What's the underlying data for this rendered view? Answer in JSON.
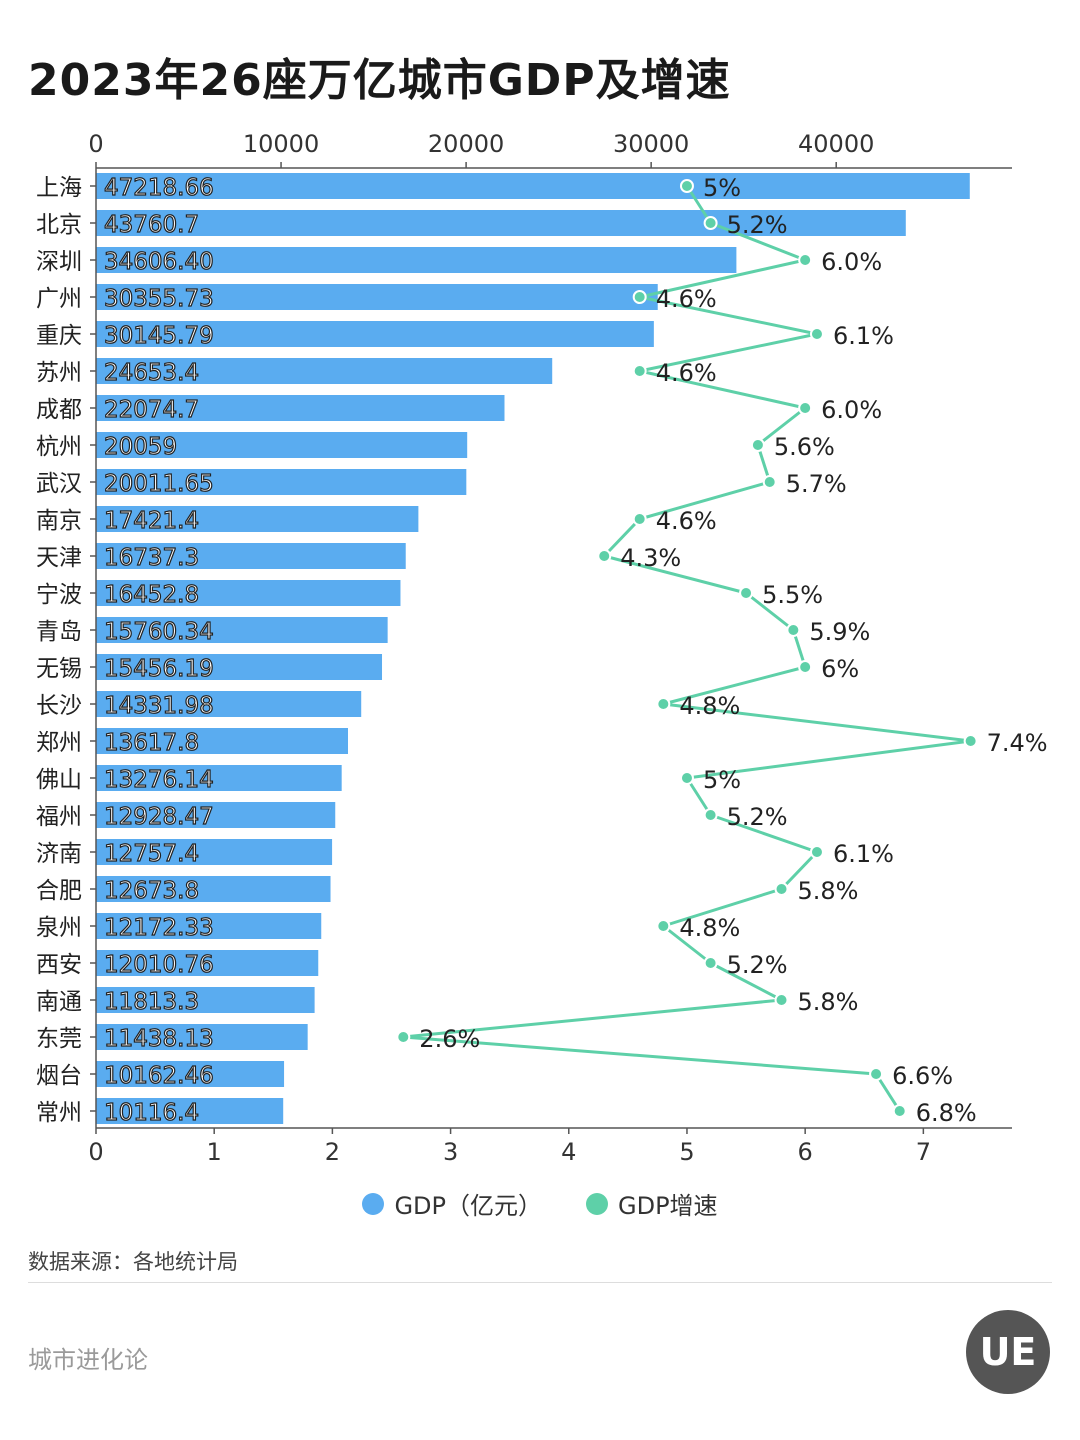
{
  "title": "2023年26座万亿城市GDP及增速",
  "chart_data": {
    "type": "bar+line",
    "orientation": "horizontal",
    "categories": [
      "上海",
      "北京",
      "深圳",
      "广州",
      "重庆",
      "苏州",
      "成都",
      "杭州",
      "武汉",
      "南京",
      "天津",
      "宁波",
      "青岛",
      "无锡",
      "长沙",
      "郑州",
      "佛山",
      "福州",
      "济南",
      "合肥",
      "泉州",
      "西安",
      "南通",
      "东莞",
      "烟台",
      "常州"
    ],
    "series": [
      {
        "name": "GDP（亿元）",
        "type": "bar",
        "axis": "top",
        "color": "#5aacf0",
        "values": [
          47218.66,
          43760.7,
          34606.4,
          30355.73,
          30145.79,
          24653.4,
          22074.7,
          20059,
          20011.65,
          17421.4,
          16737.3,
          16452.8,
          15760.34,
          15456.19,
          14331.98,
          13617.8,
          13276.14,
          12928.47,
          12757.4,
          12673.8,
          12172.33,
          12010.76,
          11813.3,
          11438.13,
          10162.46,
          10116.4
        ],
        "labels": [
          "47218.66",
          "43760.7",
          "34606.40",
          "30355.73",
          "30145.79",
          "24653.4",
          "22074.7",
          "20059",
          "20011.65",
          "17421.4",
          "16737.3",
          "16452.8",
          "15760.34",
          "15456.19",
          "14331.98",
          "13617.8",
          "13276.14",
          "12928.47",
          "12757.4",
          "12673.8",
          "12172.33",
          "12010.76",
          "11813.3",
          "11438.13",
          "10162.46",
          "10116.4"
        ]
      },
      {
        "name": "GDP增速",
        "type": "line",
        "axis": "bottom",
        "color": "#5ed0a8",
        "values": [
          5,
          5.2,
          6.0,
          4.6,
          6.1,
          4.6,
          6.0,
          5.6,
          5.7,
          4.6,
          4.3,
          5.5,
          5.9,
          6,
          4.8,
          7.4,
          5,
          5.2,
          6.1,
          5.8,
          4.8,
          5.2,
          5.8,
          2.6,
          6.6,
          6.8
        ],
        "labels": [
          "5%",
          "5.2%",
          "6.0%",
          "4.6%",
          "6.1%",
          "4.6%",
          "6.0%",
          "5.6%",
          "5.7%",
          "4.6%",
          "4.3%",
          "5.5%",
          "5.9%",
          "6%",
          "4.8%",
          "7.4%",
          "5%",
          "5.2%",
          "6.1%",
          "5.8%",
          "4.8%",
          "5.2%",
          "5.8%",
          "2.6%",
          "6.6%",
          "6.8%"
        ]
      }
    ],
    "top_axis": {
      "range": [
        0,
        49500
      ],
      "ticks": [
        0,
        10000,
        20000,
        30000,
        40000
      ]
    },
    "bottom_axis": {
      "range": [
        0,
        7.75
      ],
      "ticks": [
        0,
        1,
        2,
        3,
        4,
        5,
        6,
        7
      ]
    },
    "grid": false,
    "legend_position": "bottom-center"
  },
  "source": "数据来源：各地统计局",
  "brand": "城市进化论",
  "logo_text": "UE"
}
